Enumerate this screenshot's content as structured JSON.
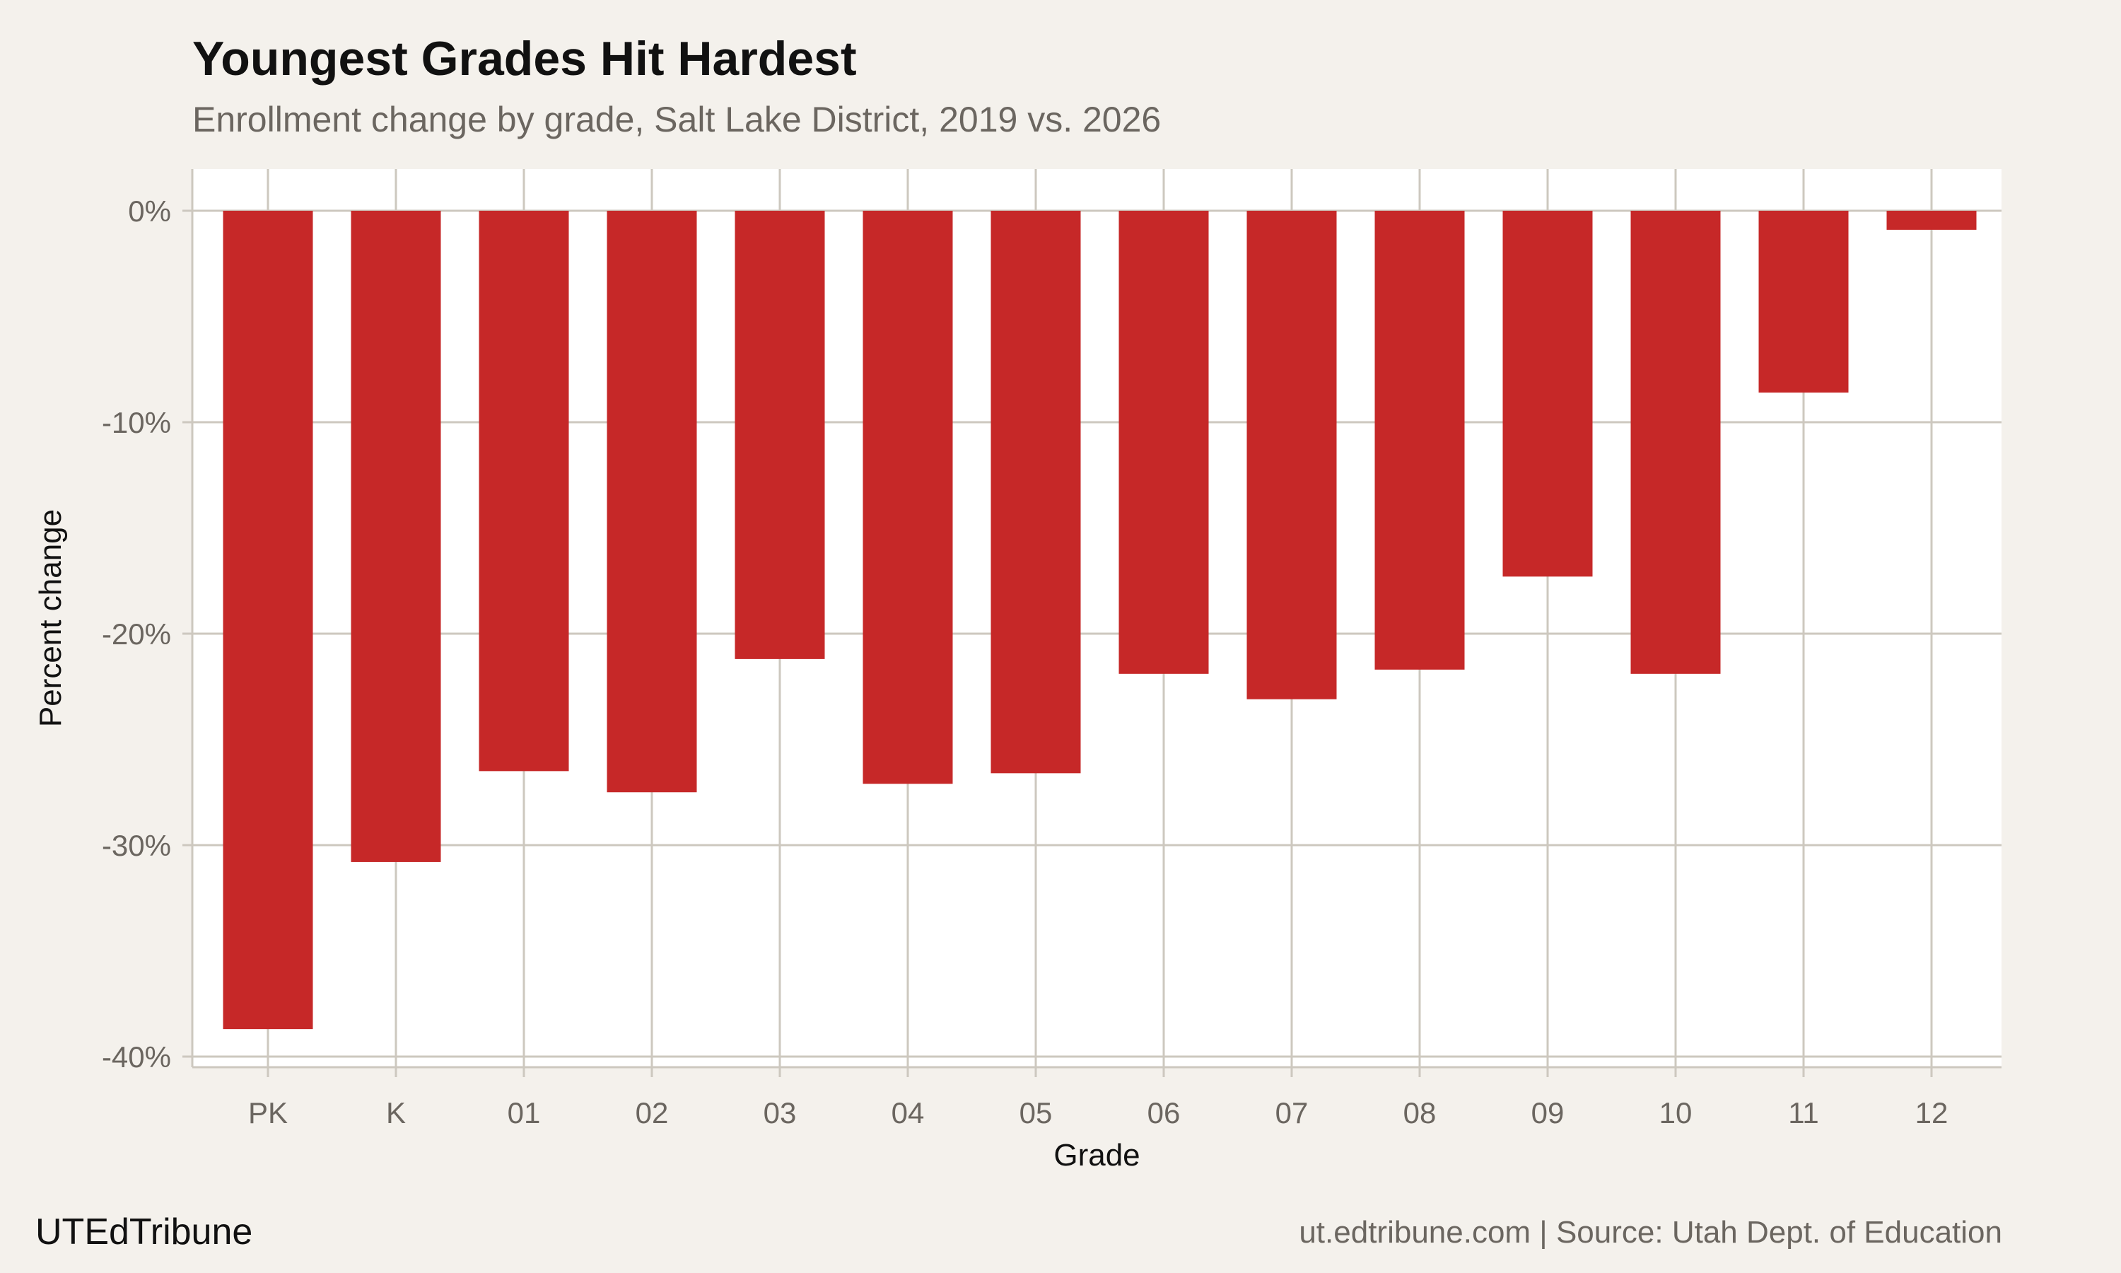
{
  "header": {
    "title": "Youngest Grades Hit Hardest",
    "subtitle": "Enrollment change by grade, Salt Lake District, 2019 vs. 2026"
  },
  "footer": {
    "brand": "UTEdTribune",
    "source": "ut.edtribune.com | Source: Utah Dept. of Education"
  },
  "chart_data": {
    "type": "bar",
    "xlabel": "Grade",
    "ylabel": "Percent change",
    "categories": [
      "PK",
      "K",
      "01",
      "02",
      "03",
      "04",
      "05",
      "06",
      "07",
      "08",
      "09",
      "10",
      "11",
      "12"
    ],
    "values": [
      -38.7,
      -30.8,
      -26.5,
      -27.5,
      -21.2,
      -27.1,
      -26.6,
      -21.9,
      -23.1,
      -21.7,
      -17.3,
      -21.9,
      -8.6,
      -0.9
    ],
    "ylim": [
      -40,
      0
    ],
    "yticks": [
      0,
      -10,
      -20,
      -30,
      -40
    ],
    "ytick_labels": [
      "0%",
      "-10%",
      "-20%",
      "-30%",
      "-40%"
    ],
    "grid": true,
    "colors": {
      "bar": "#c62828",
      "panel": "#ffffff",
      "background": "#f4f1ec",
      "grid": "#cdc8bf"
    }
  }
}
